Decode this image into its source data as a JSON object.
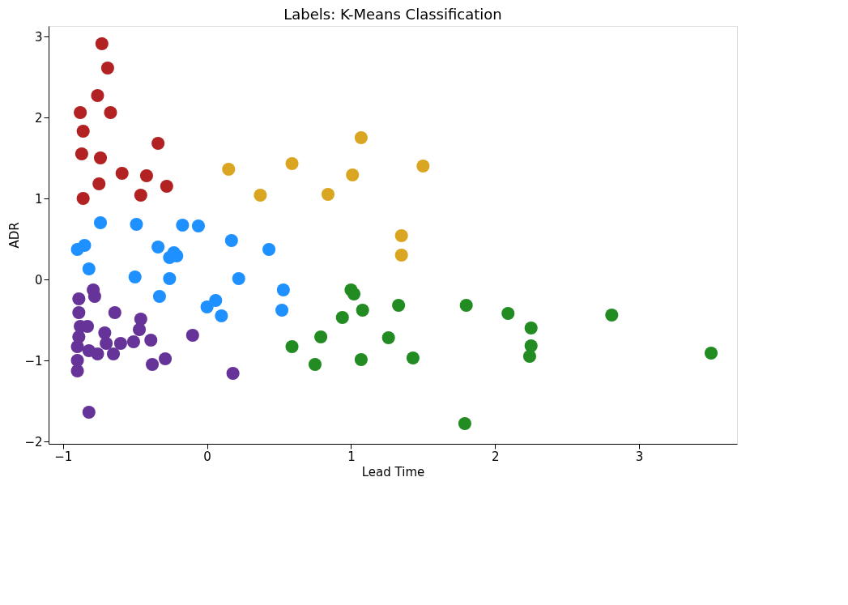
{
  "chart_data": {
    "type": "scatter",
    "title": "Labels: K-Means Classification",
    "xlabel": "Lead Time",
    "ylabel": "ADR",
    "xlim": [
      -1.1,
      3.68
    ],
    "ylim": [
      -2.03,
      3.13
    ],
    "xticks": [
      -1,
      0,
      1,
      2,
      3
    ],
    "yticks": [
      -2,
      -1,
      0,
      1,
      2,
      3
    ],
    "grid": false,
    "legend": false,
    "marker": "circle",
    "series": [
      {
        "color": "#b22222",
        "x": [
          -0.73,
          -0.69,
          -0.76,
          -0.88,
          -0.67,
          -0.86,
          -0.87,
          -0.74,
          -0.34,
          -0.59,
          -0.42,
          -0.28,
          -0.75,
          -0.46,
          -0.86
        ],
        "values": [
          2.91,
          2.61,
          2.27,
          2.06,
          2.06,
          1.83,
          1.55,
          1.5,
          1.68,
          1.31,
          1.28,
          1.15,
          1.18,
          1.04,
          1.0
        ]
      },
      {
        "color": "#daa520",
        "x": [
          0.15,
          0.37,
          0.59,
          0.84,
          1.01,
          1.07,
          1.5,
          1.35,
          1.35
        ],
        "values": [
          1.36,
          1.04,
          1.43,
          1.05,
          1.29,
          1.75,
          1.4,
          0.54,
          0.3
        ]
      },
      {
        "color": "#1e90ff",
        "x": [
          -0.74,
          -0.49,
          -0.9,
          -0.85,
          -0.82,
          -0.5,
          -0.34,
          -0.26,
          -0.21,
          -0.26,
          -0.33,
          -0.17,
          -0.06,
          0.17,
          0.22,
          0.43,
          0.53,
          0.52,
          0.0,
          0.06,
          0.1,
          -0.23
        ],
        "values": [
          0.7,
          0.68,
          0.37,
          0.42,
          0.13,
          0.03,
          0.4,
          0.27,
          0.29,
          0.01,
          -0.21,
          0.67,
          0.66,
          0.48,
          0.01,
          0.37,
          -0.13,
          -0.38,
          -0.34,
          -0.26,
          -0.45,
          0.33
        ]
      },
      {
        "color": "#663399",
        "x": [
          -0.89,
          -0.79,
          -0.78,
          -0.89,
          -0.88,
          -0.9,
          -0.9,
          -0.9,
          -0.83,
          -0.89,
          -0.71,
          -0.64,
          -0.7,
          -0.76,
          -0.82,
          -0.6,
          -0.51,
          -0.46,
          -0.47,
          -0.39,
          -0.38,
          -0.29,
          -0.1,
          0.18,
          -0.82,
          -0.65
        ],
        "values": [
          -0.24,
          -0.13,
          -0.21,
          -0.41,
          -0.58,
          -0.83,
          -1.0,
          -1.13,
          -0.58,
          -0.71,
          -0.66,
          -0.41,
          -0.79,
          -0.92,
          -0.88,
          -0.79,
          -0.77,
          -0.49,
          -0.62,
          -0.75,
          -1.05,
          -0.98,
          -0.69,
          -1.16,
          -1.64,
          -0.92
        ]
      },
      {
        "color": "#228b22",
        "x": [
          0.59,
          0.75,
          0.79,
          1.0,
          1.02,
          0.94,
          1.08,
          1.07,
          1.26,
          1.33,
          1.43,
          1.79,
          1.8,
          2.09,
          2.25,
          2.25,
          2.24,
          2.81,
          3.5
        ],
        "values": [
          -0.83,
          -1.05,
          -0.71,
          -0.13,
          -0.18,
          -0.47,
          -0.38,
          -0.99,
          -0.72,
          -0.32,
          -0.97,
          -1.78,
          -0.32,
          -0.42,
          -0.6,
          -0.82,
          -0.95,
          -0.44,
          -0.91
        ]
      }
    ]
  }
}
